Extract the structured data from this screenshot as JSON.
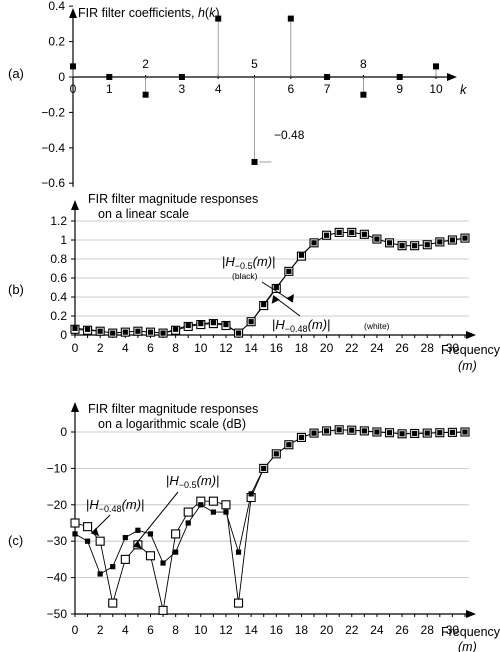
{
  "chart_data": [
    {
      "type": "scatter",
      "panel_label": "(a)",
      "title": "FIR filter coefficients, h(k)",
      "title_text": "FIR filter coefficients, ",
      "title_var": "h",
      "title_var_k": "k",
      "xlabel": "k",
      "xlim": [
        0,
        10.3
      ],
      "ylim": [
        -0.62,
        0.48
      ],
      "x_ticks": [
        0,
        1,
        2,
        3,
        4,
        5,
        6,
        7,
        8,
        9,
        10
      ],
      "y_ticks": [
        0.4,
        0.2,
        0,
        -0.2,
        -0.4,
        -0.6
      ],
      "y_tick_labels": [
        "0.4",
        "0.2",
        "0",
        "−0.2",
        "−0.4",
        "−0.6"
      ],
      "x_tick_labels": [
        "0",
        "1",
        "2",
        "3",
        "4",
        "5",
        "6",
        "7",
        "8",
        "9",
        "10"
      ],
      "series": [
        {
          "x": [
            0,
            1,
            2,
            3,
            4,
            5,
            6,
            7,
            8,
            9,
            10
          ],
          "values": [
            0.06,
            0,
            -0.1,
            0,
            0.33,
            -0.48,
            0.33,
            0,
            -0.1,
            0,
            0.06
          ]
        }
      ],
      "annotation": "−0.48"
    },
    {
      "type": "line",
      "panel_label": "(b)",
      "title_lines": [
        "FIR filter magnitude responses",
        "on a linear scale"
      ],
      "xlabel": "Frequency",
      "xlabel_unit": "(m)",
      "ylim": [
        0,
        1.2
      ],
      "xlim": [
        0,
        31.3
      ],
      "x_ticks": [
        0,
        2,
        4,
        6,
        8,
        10,
        12,
        14,
        16,
        18,
        20,
        22,
        24,
        26,
        28,
        30
      ],
      "x_tick_labels": [
        "0",
        "2",
        "4",
        "6",
        "8",
        "10",
        "12",
        "14",
        "16",
        "18",
        "20",
        "22",
        "24",
        "26",
        "28",
        "30"
      ],
      "y_ticks": [
        0,
        0.2,
        0.4,
        0.6,
        0.8,
        1,
        1.2
      ],
      "y_tick_labels": [
        "0",
        "0.2",
        "0.4",
        "0.6",
        "0.8",
        "1",
        "1.2"
      ],
      "grid": "horizontal",
      "series": [
        {
          "name": "|H−0.5(m)| (black)",
          "marker": "filled-square",
          "values": [
            0.07,
            0.06,
            0.04,
            0.02,
            0.03,
            0.04,
            0.03,
            0.02,
            0.06,
            0.1,
            0.12,
            0.13,
            0.11,
            0.02,
            0.14,
            0.32,
            0.5,
            0.67,
            0.84,
            0.97,
            1.05,
            1.08,
            1.08,
            1.06,
            1.01,
            0.97,
            0.94,
            0.94,
            0.95,
            0.98,
            1.0,
            1.02
          ]
        },
        {
          "name": "|H−0.48(m)| (white)",
          "marker": "open-square",
          "values": [
            0.06,
            0.05,
            0.04,
            0.02,
            0.03,
            0.04,
            0.03,
            0.02,
            0.05,
            0.09,
            0.11,
            0.12,
            0.1,
            0.02,
            0.14,
            0.31,
            0.49,
            0.67,
            0.83,
            0.97,
            1.05,
            1.08,
            1.08,
            1.06,
            1.01,
            0.97,
            0.94,
            0.94,
            0.95,
            0.98,
            1.0,
            1.02
          ]
        }
      ],
      "annotations": {
        "black_var": "H",
        "black_sub": "−0.5",
        "black_arg": "(m)",
        "black_note": "(black)",
        "white_var": "H",
        "white_sub": "−0.48",
        "white_arg": "(m)",
        "white_note": "(white)"
      }
    },
    {
      "type": "line",
      "panel_label": "(c)",
      "title_lines": [
        "FIR filter magnitude responses",
        "on a logarithmic scale (dB)"
      ],
      "xlabel": "Frequency",
      "xlabel_unit": "(m)",
      "ylim": [
        -50,
        0
      ],
      "xlim": [
        0,
        31.3
      ],
      "x_ticks": [
        0,
        2,
        4,
        6,
        8,
        10,
        12,
        14,
        16,
        18,
        20,
        22,
        24,
        26,
        28,
        30
      ],
      "x_tick_labels": [
        "0",
        "2",
        "4",
        "6",
        "8",
        "10",
        "12",
        "14",
        "16",
        "18",
        "20",
        "22",
        "24",
        "26",
        "28",
        "30"
      ],
      "y_ticks": [
        0,
        -10,
        -20,
        -30,
        -40,
        -50
      ],
      "y_tick_labels": [
        "0",
        "−10",
        "−20",
        "−30",
        "−40",
        "−50"
      ],
      "grid": "horizontal",
      "series": [
        {
          "name": "|H−0.5(m)|",
          "marker": "filled-square",
          "values": [
            -28,
            -30,
            -39,
            -37,
            -29,
            -27,
            -28,
            -36,
            -33,
            -25,
            -20,
            -22,
            -22,
            -33,
            -17,
            -10,
            -6,
            -3.5,
            -1.5,
            -0.3,
            0.3,
            0.6,
            0.5,
            0.3,
            0,
            -0.2,
            -0.5,
            -0.4,
            -0.3,
            -0.2,
            -0.1,
            0
          ]
        },
        {
          "name": "|H−0.48(m)|",
          "marker": "open-square",
          "values": [
            -25,
            -26,
            -30,
            -47,
            -35,
            -31,
            -34,
            -49,
            -28,
            -22,
            -19,
            -19,
            -20,
            -47,
            -18,
            -10,
            -6,
            -3.5,
            -1.5,
            -0.3,
            0.3,
            0.6,
            0.5,
            0.3,
            0,
            -0.2,
            -0.5,
            -0.4,
            -0.3,
            -0.2,
            -0.1,
            0
          ]
        }
      ],
      "annotations": {
        "a_var": "H",
        "a_sub": "−0.5",
        "a_arg": "(m)",
        "b_var": "H",
        "b_sub": "−0.48",
        "b_arg": "(m)"
      }
    }
  ]
}
